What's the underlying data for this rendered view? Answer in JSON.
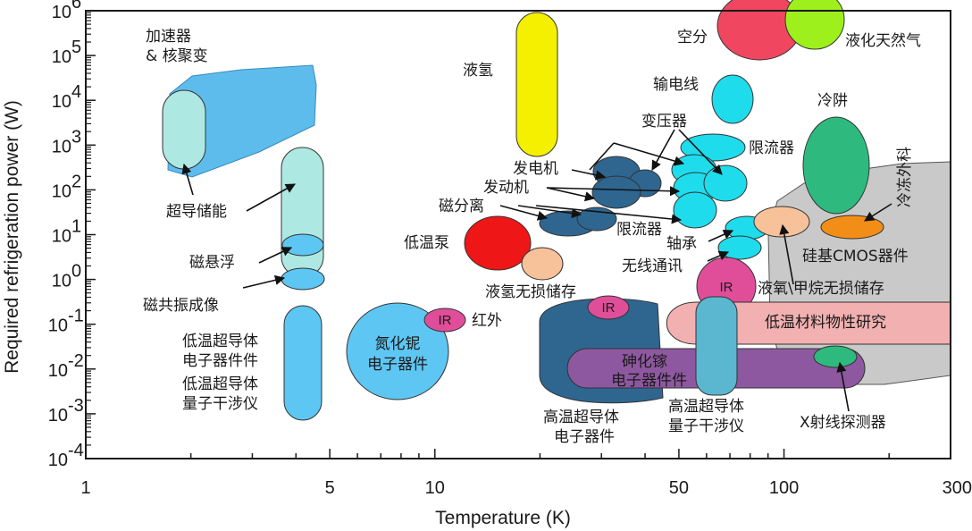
{
  "chart_data": {
    "type": "scatter",
    "xlabel": "Temperature (K)",
    "ylabel": "Required refrigeration power (W)",
    "x_scale": "log",
    "y_scale": "log",
    "xlim": [
      1,
      300
    ],
    "ylim": [
      0.0001,
      1000000
    ],
    "x_ticks": [
      {
        "value": 1,
        "label": "1"
      },
      {
        "value": 5,
        "label": "5"
      },
      {
        "value": 10,
        "label": "10"
      },
      {
        "value": 50,
        "label": "50"
      },
      {
        "value": 100,
        "label": "100"
      },
      {
        "value": 300,
        "label": "300"
      }
    ],
    "y_ticks": [
      {
        "value": 0.0001,
        "base": "10",
        "exp": "-4"
      },
      {
        "value": 0.001,
        "base": "10",
        "exp": "-3"
      },
      {
        "value": 0.01,
        "base": "10",
        "exp": "-2"
      },
      {
        "value": 0.1,
        "base": "10",
        "exp": "-1"
      },
      {
        "value": 1,
        "base": "10",
        "exp": "0"
      },
      {
        "value": 10,
        "base": "10",
        "exp": "1"
      },
      {
        "value": 100,
        "base": "10",
        "exp": "2"
      },
      {
        "value": 1000,
        "base": "10",
        "exp": "3"
      },
      {
        "value": 10000,
        "base": "10",
        "exp": "4"
      },
      {
        "value": 100000,
        "base": "10",
        "exp": "5"
      },
      {
        "value": 1000000,
        "base": "10",
        "exp": "6"
      }
    ],
    "regions": [
      {
        "kind": "polygon",
        "name": "cold-electronics-region",
        "color": "#c8c8c8",
        "points": [
          [
            60,
            8
          ],
          [
            75,
            50
          ],
          [
            120,
            80
          ],
          [
            240,
            150
          ],
          [
            300,
            180
          ],
          [
            300,
            0.006
          ],
          [
            80,
            0.006
          ],
          [
            60,
            0.05
          ]
        ]
      },
      {
        "kind": "polygon",
        "name": "accelerator-region",
        "color": "#5ebcec",
        "points": [
          [
            1.6,
            400
          ],
          [
            1.8,
            8000
          ],
          [
            2.2,
            25000
          ],
          [
            3.5,
            50000
          ],
          [
            4.6,
            50000
          ],
          [
            4.7,
            2000
          ],
          [
            4.4,
            1400
          ],
          [
            3,
            700
          ],
          [
            2,
            250
          ],
          [
            1.65,
            300
          ]
        ]
      },
      {
        "kind": "ellipse",
        "name": "high-tc-electronics",
        "color": "#2e6690",
        "cx": 30,
        "cy": 0.03,
        "rx": 2.8,
        "ry": 2.1
      },
      {
        "kind": "ellipse",
        "name": "niobium-nitride-electronics",
        "color": "#5ec6f2",
        "cx": 9.1,
        "cy": 0.025,
        "rx": 2.8,
        "ry": 2.1
      },
      {
        "kind": "ellipse",
        "name": "ln-storage",
        "color": "#f7c29a",
        "cx": 100,
        "cy": 20,
        "rx": 1.12,
        "ry": 0.7
      },
      {
        "kind": "ellipse",
        "name": "cold-ir-right",
        "color": "#e04e9a",
        "cx": 63,
        "cy": 1,
        "rx": 1.2,
        "ry": 1.25
      }
    ],
    "series": [
      {
        "name": "加速器",
        "x": [
          2.5
        ],
        "y": [
          10000
        ]
      },
      {
        "name": "超导储能",
        "x": [
          1.85
        ],
        "y": [
          1000
        ]
      },
      {
        "name": "磁悬浮",
        "x": [
          4.2
        ],
        "y": [
          50
        ]
      },
      {
        "name": "磁共振成像",
        "x": [
          4.2
        ],
        "y": [
          1
        ]
      },
      {
        "name": "低温超导体电子器件",
        "x": [
          4.2
        ],
        "y": [
          0.03
        ]
      },
      {
        "name": "氮化铌电子器件",
        "x": [
          9
        ],
        "y": [
          0.025
        ]
      },
      {
        "name": "液氢",
        "x": [
          20
        ],
        "y": [
          100000
        ]
      },
      {
        "name": "低温泵",
        "x": [
          15
        ],
        "y": [
          6
        ]
      },
      {
        "name": "液氢无损储存",
        "x": [
          20.5
        ],
        "y": [
          0.4
        ]
      },
      {
        "name": "磁分离",
        "x": [
          25
        ],
        "y": [
          20
        ]
      },
      {
        "name": "发电机",
        "x": [
          35
        ],
        "y": [
          150
        ]
      },
      {
        "name": "发动机",
        "x": [
          36
        ],
        "y": [
          60
        ]
      },
      {
        "name": "变压器",
        "x": [
          55
        ],
        "y": [
          200
        ]
      },
      {
        "name": "限流器",
        "x": [
          60
        ],
        "y": [
          50
        ]
      },
      {
        "name": "输电线",
        "x": [
          70
        ],
        "y": [
          10000
        ]
      },
      {
        "name": "轴承",
        "x": [
          70
        ],
        "y": [
          10
        ]
      },
      {
        "name": "无线通讯",
        "x": [
          70
        ],
        "y": [
          3
        ]
      },
      {
        "name": "空分",
        "x": [
          85
        ],
        "y": [
          800000
        ]
      },
      {
        "name": "液化天然气",
        "x": [
          115
        ],
        "y": [
          800000
        ]
      },
      {
        "name": "冷阱",
        "x": [
          130
        ],
        "y": [
          500
        ]
      },
      {
        "name": "硅基CMOS器件",
        "x": [
          150
        ],
        "y": [
          12
        ]
      },
      {
        "name": "液氧/甲烷无损储存",
        "x": [
          100
        ],
        "y": [
          20
        ]
      },
      {
        "name": "高温超导体电子器件",
        "x": [
          30
        ],
        "y": [
          0.03
        ]
      },
      {
        "name": "砷化镓电子器件",
        "x": [
          60
        ],
        "y": [
          0.015
        ]
      },
      {
        "name": "高温超导体量子干涉仪",
        "x": [
          65
        ],
        "y": [
          0.1
        ]
      },
      {
        "name": "低温材料物性研究",
        "x": [
          150
        ],
        "y": [
          0.1
        ]
      },
      {
        "name": "X射线探测器",
        "x": [
          130
        ],
        "y": [
          0.02
        ]
      }
    ],
    "ir_labels": [
      "IR",
      "IR",
      "IR"
    ],
    "annotations": [
      {
        "text": "加速器",
        "line2": "& 核聚变"
      },
      {
        "text": "超导储能"
      },
      {
        "text": "磁悬浮"
      },
      {
        "text": "磁共振成像"
      },
      {
        "text": "低温超导体",
        "line2": "电子器件件"
      },
      {
        "text": "低温超导体",
        "line2": "量子干涉仪"
      },
      {
        "text": "氮化铌",
        "line2": "电子器件"
      },
      {
        "text": "红外"
      },
      {
        "text": "液氢"
      },
      {
        "text": "低温泵"
      },
      {
        "text": "液氢无损储存"
      },
      {
        "text": "磁分离"
      },
      {
        "text": "发电机"
      },
      {
        "text": "发动机"
      },
      {
        "text": "变压器"
      },
      {
        "text": "限流器"
      },
      {
        "text": "限流器"
      },
      {
        "text": "输电线"
      },
      {
        "text": "轴承"
      },
      {
        "text": "无线通讯"
      },
      {
        "text": "空分"
      },
      {
        "text": "液化天然气"
      },
      {
        "text": "冷阱"
      },
      {
        "text": "冷冻外科"
      },
      {
        "text": "硅基CMOS器件"
      },
      {
        "text": "液氧\\甲烷无损储存"
      },
      {
        "text": "低温材料物性研究"
      },
      {
        "text": "砷化镓",
        "line2": "电子器件件"
      },
      {
        "text": "高温超导体",
        "line2": "电子器件"
      },
      {
        "text": "高温超导体",
        "line2": "量子干涉仪"
      },
      {
        "text": "X射线探测器"
      }
    ],
    "grid": false,
    "legend": "none"
  }
}
